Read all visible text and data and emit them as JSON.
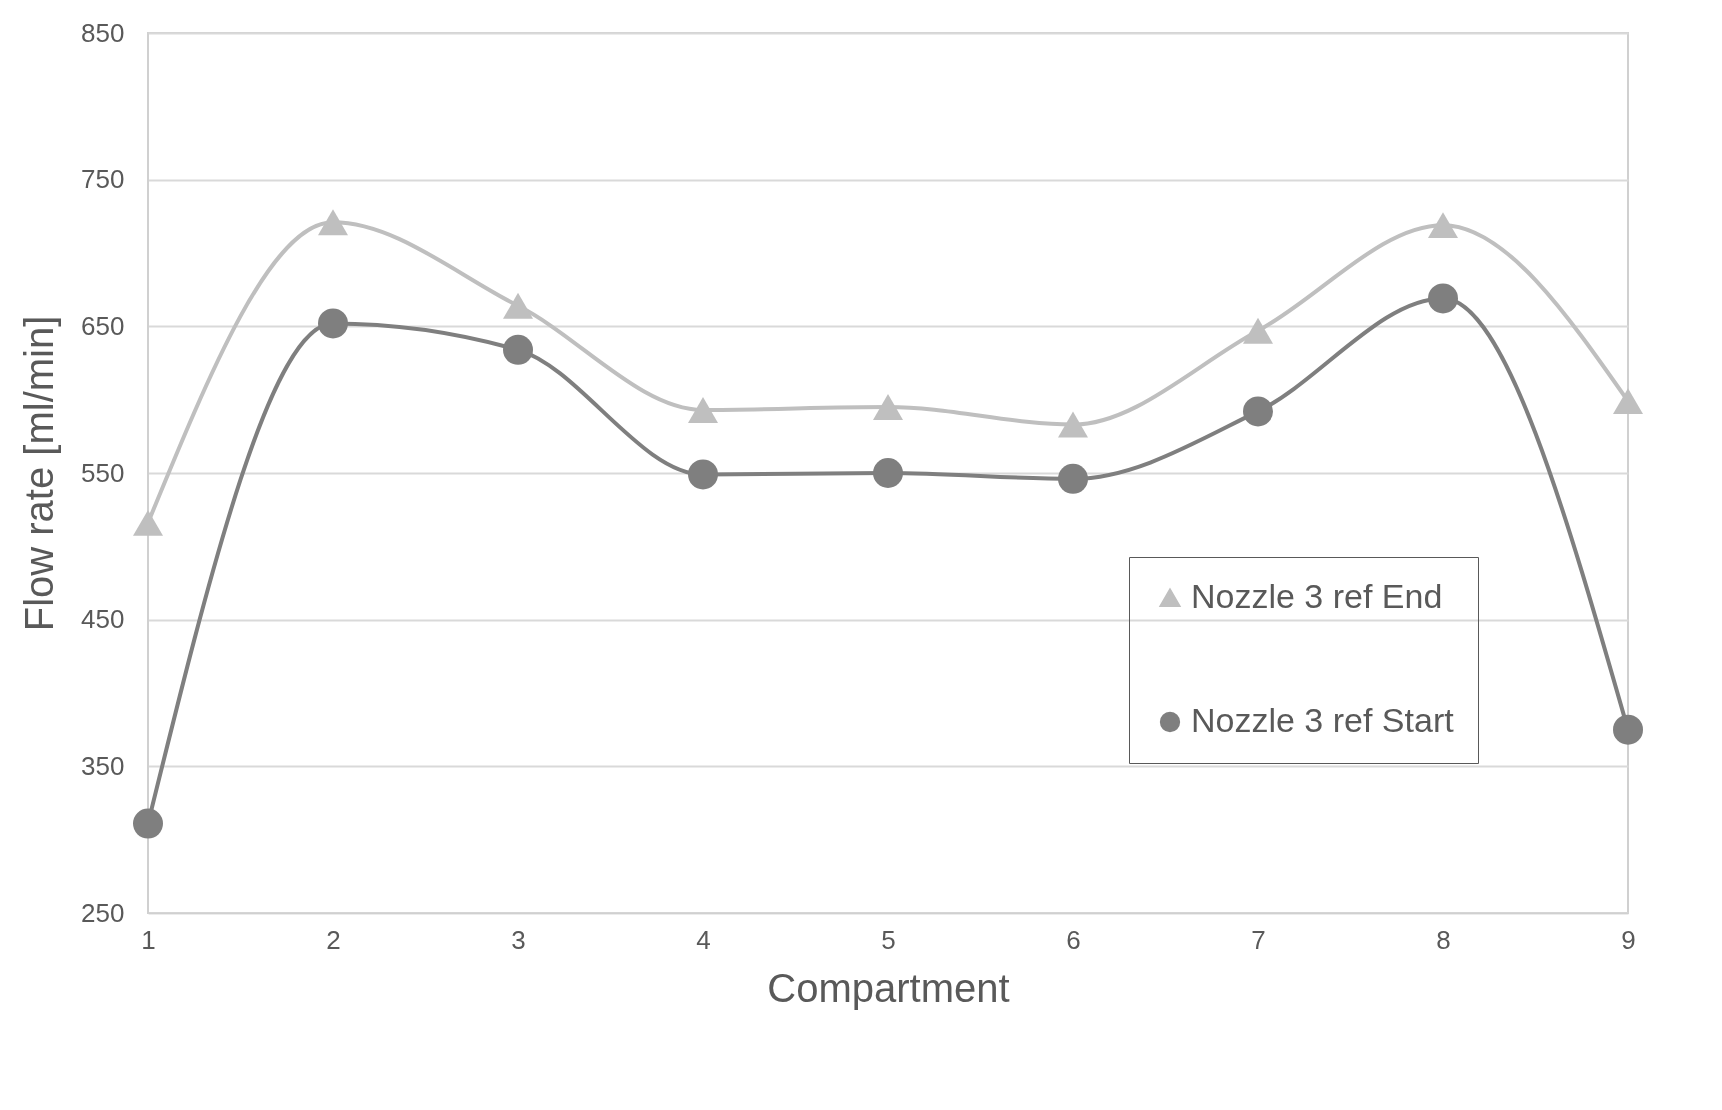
{
  "chart_data": {
    "type": "line",
    "xlabel": "Compartment",
    "ylabel": "Flow rate [ml/min]",
    "x": [
      1,
      2,
      3,
      4,
      5,
      6,
      7,
      8,
      9
    ],
    "xlim": [
      1,
      9
    ],
    "xticks": [
      1,
      2,
      3,
      4,
      5,
      6,
      7,
      8,
      9
    ],
    "ylim": [
      250,
      850
    ],
    "yticks": [
      250,
      350,
      450,
      550,
      650,
      750,
      850
    ],
    "grid": "y",
    "legend": "bottom right",
    "line_style": "solid",
    "series": [
      {
        "name": "Nozzle 3 ref End",
        "color": "#bfbfbf",
        "marker": "triangle",
        "values": [
          516,
          721,
          664,
          593,
          595,
          583,
          647,
          719,
          599
        ]
      },
      {
        "name": "Nozzle 3 ref Start",
        "color": "#7f7f7f",
        "marker": "circle",
        "values": [
          311,
          652,
          634,
          549,
          550,
          546,
          592,
          669,
          375
        ]
      }
    ]
  }
}
